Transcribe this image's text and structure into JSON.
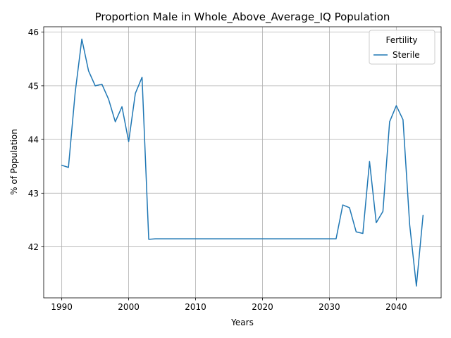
{
  "chart_data": {
    "type": "line",
    "title": "Proportion Male in Whole_Above_Average_IQ Population",
    "xlabel": "Years",
    "ylabel": "% of Population",
    "xlim": [
      1987.3,
      2046.7
    ],
    "ylim": [
      41.05,
      46.1
    ],
    "xticks": [
      1990,
      2000,
      2010,
      2020,
      2030,
      2040
    ],
    "yticks": [
      42,
      43,
      44,
      45,
      46
    ],
    "grid": true,
    "legend": {
      "title": "Fertility",
      "position": "top-right"
    },
    "series": [
      {
        "name": "Sterile",
        "color": "#1f77b4",
        "x": [
          1990,
          1991,
          1992,
          1993,
          1994,
          1995,
          1996,
          1997,
          1998,
          1999,
          2000,
          2001,
          2002,
          2003,
          2004,
          2005,
          2006,
          2007,
          2008,
          2009,
          2010,
          2011,
          2012,
          2013,
          2014,
          2015,
          2016,
          2017,
          2018,
          2019,
          2020,
          2021,
          2022,
          2023,
          2024,
          2025,
          2026,
          2027,
          2028,
          2029,
          2030,
          2031,
          2032,
          2033,
          2034,
          2035,
          2036,
          2037,
          2038,
          2039,
          2040,
          2041,
          2042,
          2043,
          2044
        ],
        "y": [
          43.52,
          43.48,
          44.87,
          45.87,
          45.28,
          45.0,
          45.03,
          44.75,
          44.33,
          44.61,
          43.96,
          44.86,
          45.16,
          42.14,
          42.15,
          42.15,
          42.15,
          42.15,
          42.15,
          42.15,
          42.15,
          42.15,
          42.15,
          42.15,
          42.15,
          42.15,
          42.15,
          42.15,
          42.15,
          42.15,
          42.15,
          42.15,
          42.15,
          42.15,
          42.15,
          42.15,
          42.15,
          42.15,
          42.15,
          42.15,
          42.15,
          42.15,
          42.78,
          42.73,
          42.28,
          42.25,
          43.59,
          42.45,
          42.66,
          44.33,
          44.63,
          44.37,
          42.41,
          41.27,
          42.59
        ]
      }
    ]
  }
}
